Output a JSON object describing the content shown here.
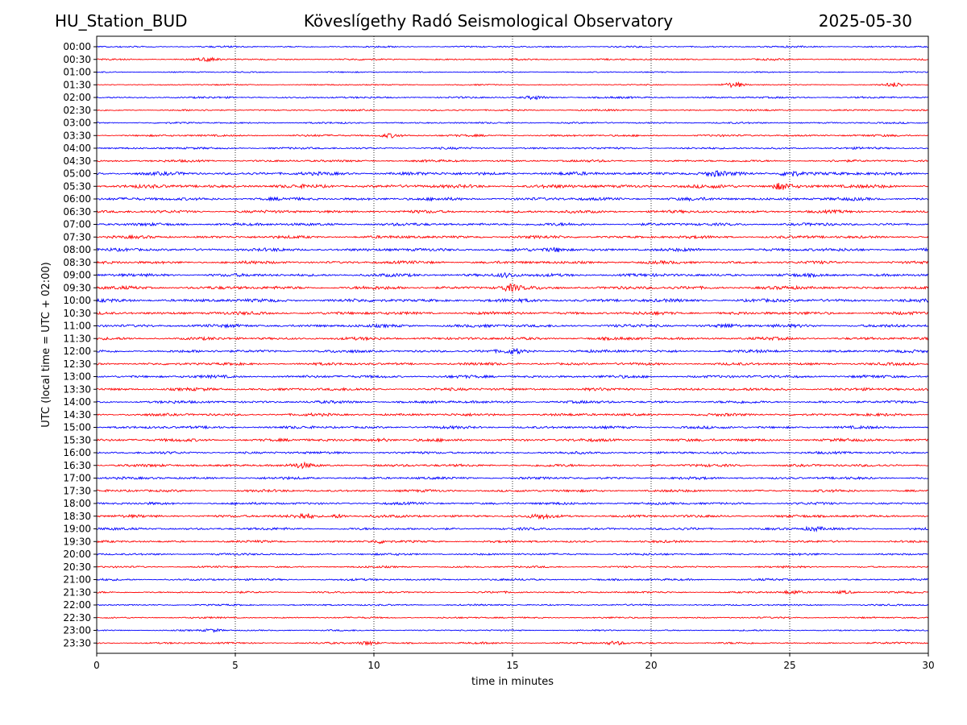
{
  "header": {
    "station": "HU_Station_BUD",
    "observatory": "Köveslígethy Radó Seismological Observatory",
    "date": "2025-05-30"
  },
  "chart_data": {
    "type": "line",
    "title": "Köveslígethy Radó Seismological Observatory",
    "xlabel": "time in minutes",
    "ylabel": "UTC (local time = UTC + 02:00)",
    "xlim": [
      0,
      30
    ],
    "x_ticks": [
      0,
      5,
      10,
      15,
      20,
      25,
      30
    ],
    "grid": "vertical dotted at x ticks",
    "row_labels": [
      "00:00",
      "00:30",
      "01:00",
      "01:30",
      "02:00",
      "02:30",
      "03:00",
      "03:30",
      "04:00",
      "04:30",
      "05:00",
      "05:30",
      "06:00",
      "06:30",
      "07:00",
      "07:30",
      "08:00",
      "08:30",
      "09:00",
      "09:30",
      "10:00",
      "10:30",
      "11:00",
      "11:30",
      "12:00",
      "12:30",
      "13:00",
      "13:30",
      "14:00",
      "14:30",
      "15:00",
      "15:30",
      "16:00",
      "16:30",
      "17:00",
      "17:30",
      "18:00",
      "18:30",
      "19:00",
      "19:30",
      "20:00",
      "20:30",
      "21:00",
      "21:30",
      "22:00",
      "22:30",
      "23:00",
      "23:30"
    ],
    "trace_colors": [
      "#0000ff",
      "#ff0000"
    ],
    "amplitude_levels": [
      0.8,
      0.8,
      0.6,
      0.6,
      0.9,
      0.8,
      0.8,
      1.0,
      1.0,
      1.1,
      1.6,
      1.7,
      1.5,
      1.4,
      1.4,
      1.4,
      1.5,
      1.4,
      1.5,
      1.6,
      1.6,
      1.5,
      1.5,
      1.4,
      1.4,
      1.3,
      1.4,
      1.4,
      1.3,
      1.3,
      1.3,
      1.4,
      1.2,
      1.3,
      1.2,
      1.2,
      1.2,
      1.3,
      1.2,
      1.1,
      1.0,
      0.9,
      1.0,
      0.9,
      0.8,
      0.8,
      0.7,
      0.9
    ],
    "bursts": [
      {
        "row": 1,
        "x": 4.0,
        "amp": 1.6
      },
      {
        "row": 3,
        "x": 23.0,
        "amp": 2.8
      },
      {
        "row": 3,
        "x": 28.8,
        "amp": 2.2
      },
      {
        "row": 4,
        "x": 15.8,
        "amp": 1.8
      },
      {
        "row": 7,
        "x": 10.6,
        "amp": 2.0
      },
      {
        "row": 10,
        "x": 22.3,
        "amp": 2.2
      },
      {
        "row": 10,
        "x": 25.0,
        "amp": 3.4
      },
      {
        "row": 11,
        "x": 24.7,
        "amp": 3.6
      },
      {
        "row": 16,
        "x": 16.6,
        "amp": 2.0
      },
      {
        "row": 18,
        "x": 14.8,
        "amp": 2.0
      },
      {
        "row": 19,
        "x": 14.9,
        "amp": 3.2
      },
      {
        "row": 22,
        "x": 22.8,
        "amp": 1.8
      },
      {
        "row": 24,
        "x": 15.1,
        "amp": 2.2
      },
      {
        "row": 31,
        "x": 10.3,
        "amp": 1.8
      },
      {
        "row": 33,
        "x": 7.4,
        "amp": 2.0
      },
      {
        "row": 37,
        "x": 7.5,
        "amp": 2.6
      },
      {
        "row": 37,
        "x": 8.7,
        "amp": 2.0
      },
      {
        "row": 37,
        "x": 16.0,
        "amp": 1.7
      },
      {
        "row": 38,
        "x": 25.9,
        "amp": 2.0
      },
      {
        "row": 39,
        "x": 10.2,
        "amp": 1.6
      },
      {
        "row": 43,
        "x": 25.1,
        "amp": 1.8
      },
      {
        "row": 43,
        "x": 27.0,
        "amp": 1.6
      },
      {
        "row": 46,
        "x": 4.2,
        "amp": 1.5
      },
      {
        "row": 47,
        "x": 9.8,
        "amp": 2.0
      },
      {
        "row": 47,
        "x": 18.7,
        "amp": 1.8
      }
    ]
  }
}
